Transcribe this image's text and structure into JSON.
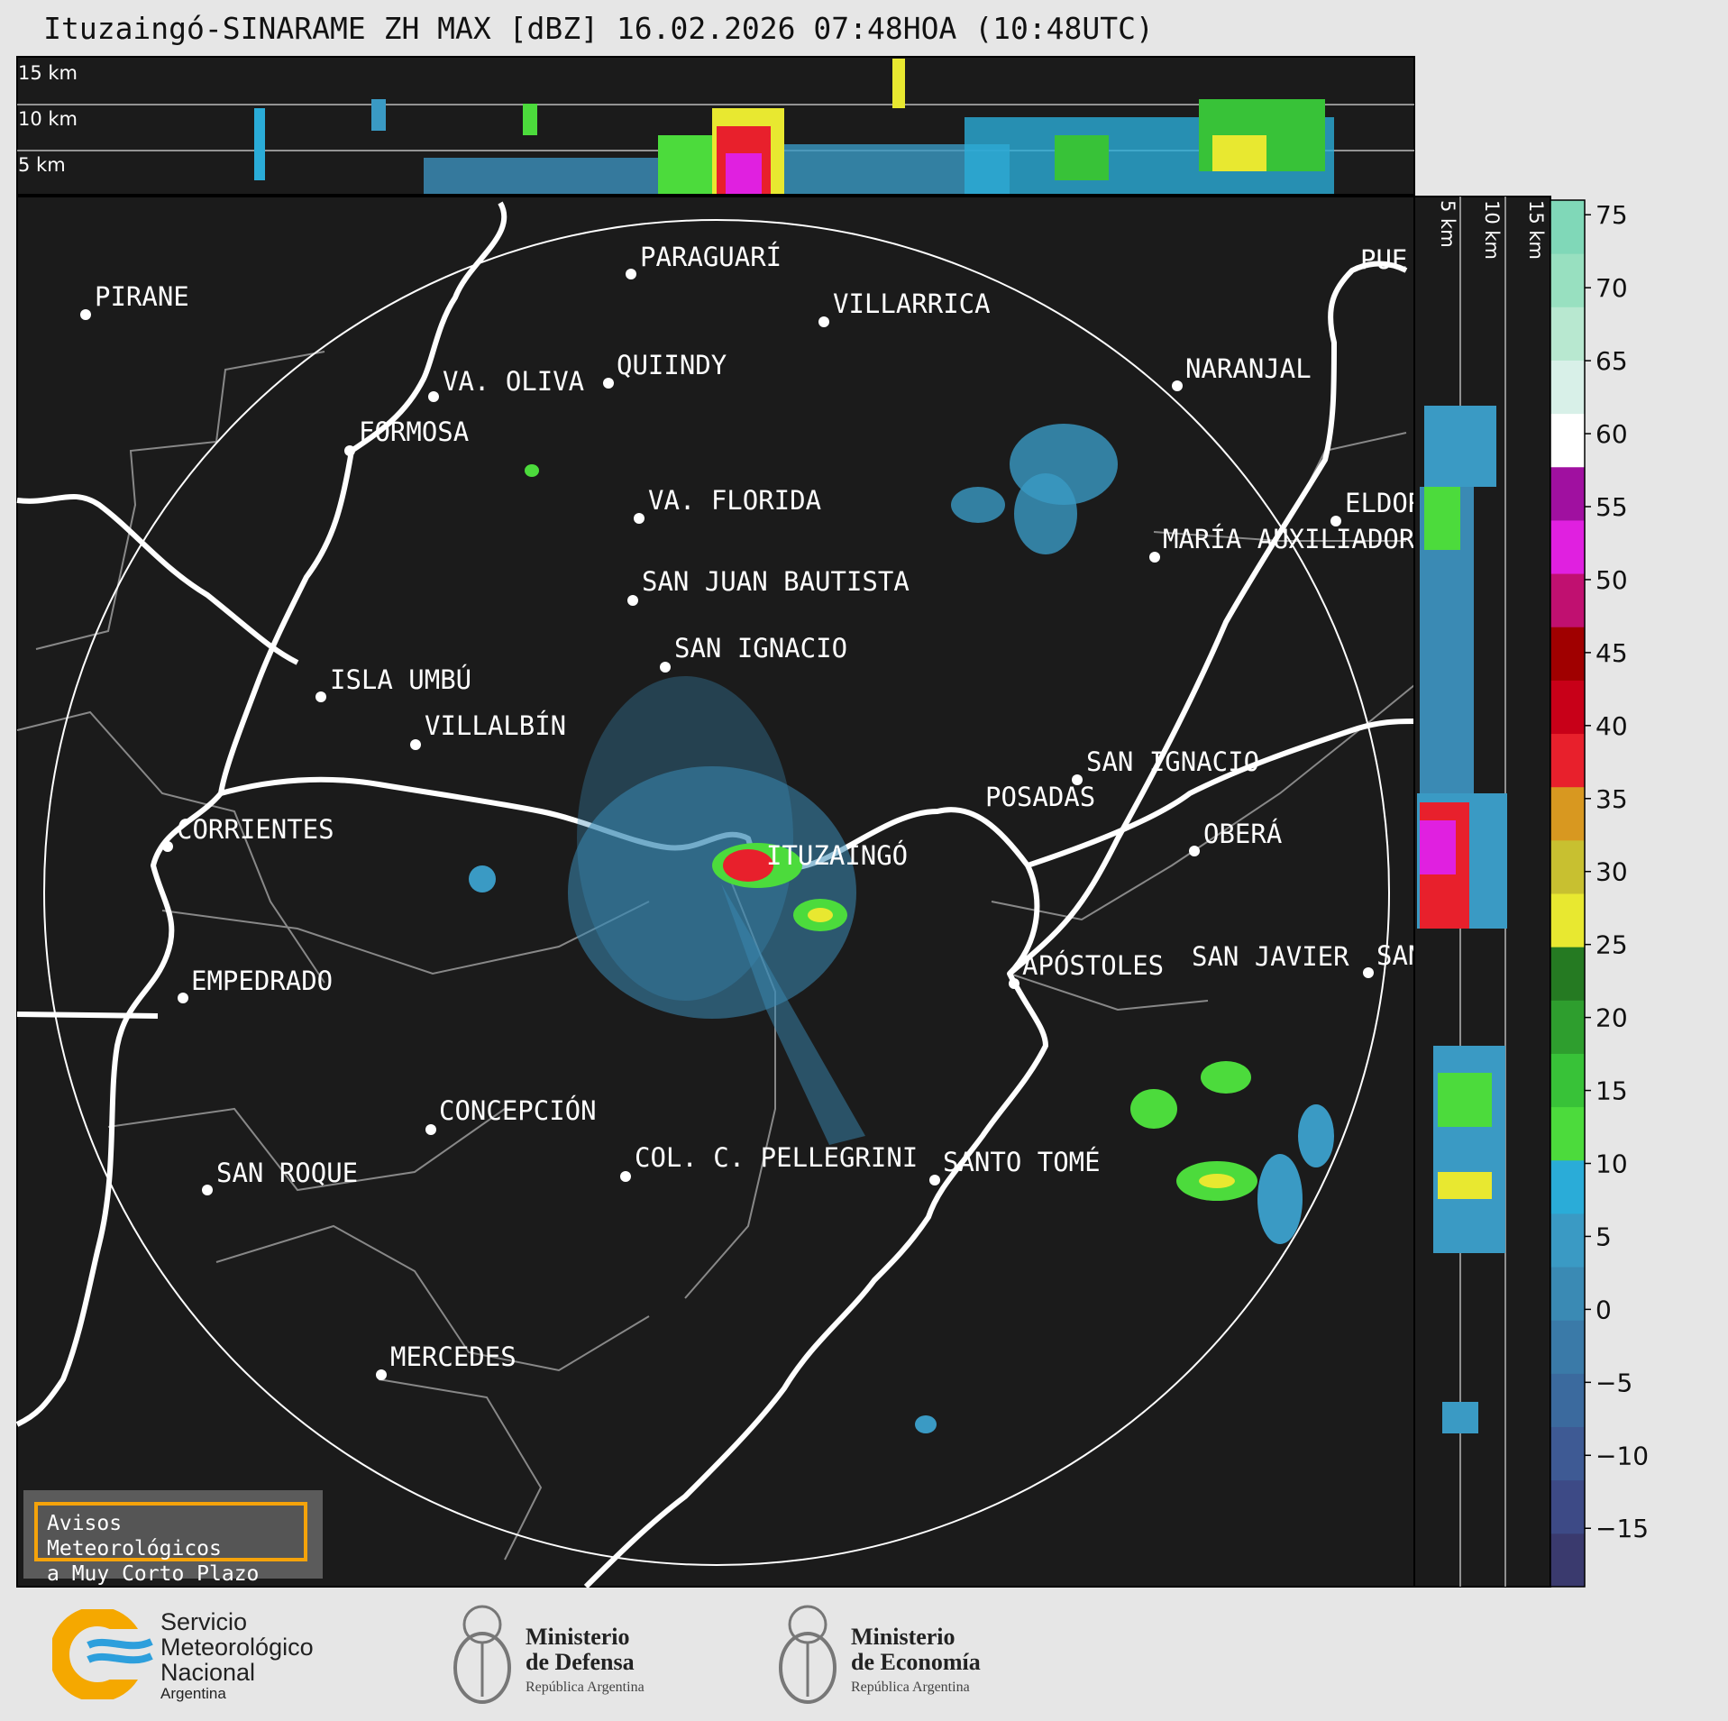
{
  "title": "Ituzaingó-SINARAME ZH MAX [dBZ] 16.02.2026 07:48HOA (10:48UTC)",
  "top_panel_labels": [
    "15 km",
    "10 km",
    "5 km"
  ],
  "side_panel_labels": [
    "5 km",
    "10 km",
    "15 km"
  ],
  "cities": [
    {
      "name": "PARAGUARÍ"
    },
    {
      "name": "PIRANE"
    },
    {
      "name": "VILLARRICA"
    },
    {
      "name": "VA. OLIVA"
    },
    {
      "name": "QUIINDY"
    },
    {
      "name": "NARANJAL"
    },
    {
      "name": "FORMOSA"
    },
    {
      "name": "VA. FLORIDA"
    },
    {
      "name": "ELDOR"
    },
    {
      "name": "MARÍA AUXILIADOR"
    },
    {
      "name": "SAN JUAN BAUTISTA"
    },
    {
      "name": "SAN IGNACIO"
    },
    {
      "name": "ISLA UMBÚ"
    },
    {
      "name": "VILLALBÍN"
    },
    {
      "name": "SAN IGNACIO"
    },
    {
      "name": "POSADAS"
    },
    {
      "name": "CORRIENTES"
    },
    {
      "name": "ITUZAINGÓ"
    },
    {
      "name": "OBERÁ"
    },
    {
      "name": "APÓSTOLES"
    },
    {
      "name": "SAN JAVIER"
    },
    {
      "name": "SAN"
    },
    {
      "name": "EMPEDRADO"
    },
    {
      "name": "CONCEPCIÓN"
    },
    {
      "name": "COL. C. PELLEGRINI"
    },
    {
      "name": "SANTO TOMÉ"
    },
    {
      "name": "SAN ROQUE"
    },
    {
      "name": "MERCEDES"
    },
    {
      "name": "PUE"
    }
  ],
  "colorbar": {
    "ticks": [
      "75",
      "70",
      "65",
      "60",
      "55",
      "50",
      "45",
      "40",
      "35",
      "30",
      "25",
      "20",
      "15",
      "10",
      "5",
      "0",
      "−5",
      "−10",
      "−15"
    ],
    "range": [
      -19,
      76
    ],
    "colors": [
      "#3a3a6e",
      "#3d4a86",
      "#3e5a94",
      "#3b6a9e",
      "#3a7aa8",
      "#3a8ab4",
      "#3a9ac4",
      "#2aacd8",
      "#4cdb3c",
      "#38c238",
      "#2e9e2e",
      "#257a22",
      "#e8e830",
      "#c8c030",
      "#d89820",
      "#e8202c",
      "#c80018",
      "#a00000",
      "#c01070",
      "#e020e0",
      "#a010a0",
      "#ffffff",
      "#d8f0e8",
      "#b8e8d0",
      "#98e0c0",
      "#80d8b8"
    ]
  },
  "warning": {
    "line1": "Avisos Meteorológicos",
    "line2": "a Muy Corto Plazo"
  },
  "logos": {
    "smn": {
      "line1": "Servicio",
      "line2": "Meteorológico",
      "line3": "Nacional",
      "line4": "Argentina"
    },
    "defensa": {
      "line1": "Ministerio",
      "line2": "de Defensa",
      "line3": "República Argentina"
    },
    "economia": {
      "line1": "Ministerio",
      "line2": "de Economía",
      "line3": "República Argentina"
    }
  }
}
